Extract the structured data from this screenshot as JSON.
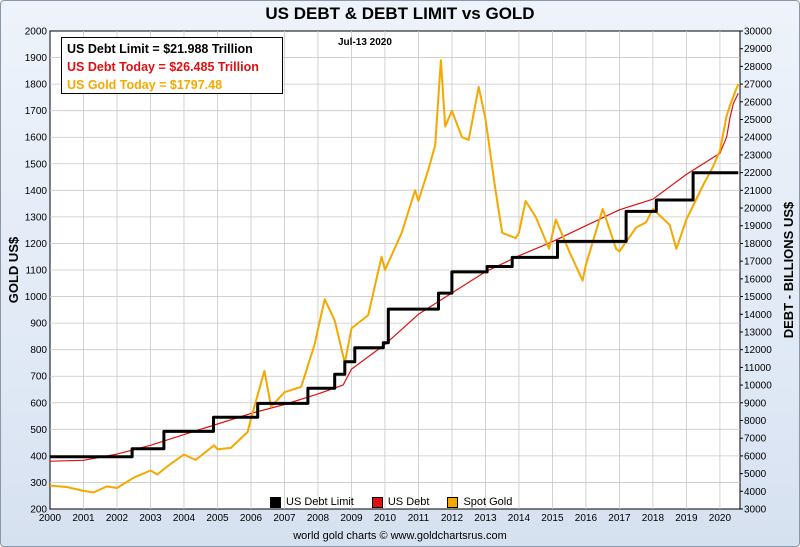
{
  "title": "US DEBT & DEBT LIMIT vs GOLD",
  "date_label": "Jul-13  2020",
  "infobox": {
    "debt_limit": "US Debt Limit      = $21.988 Trillion",
    "debt_today": "US Debt Today = $26.485 Trillion",
    "gold_today": "US Gold Today = $1797.48"
  },
  "footer": "world gold charts © www.goldchartsrus.com",
  "colors": {
    "debt_limit": "#000000",
    "debt": "#e01010",
    "gold": "#f5a800",
    "background": "#ffffff",
    "grid": "#c8c8c8"
  },
  "chart_data": {
    "type": "line",
    "title": "US DEBT & DEBT LIMIT vs GOLD",
    "xlabel": "",
    "ylabel_left": "GOLD US$",
    "ylabel_right": "DEBT - BILLIONS US$",
    "x_ticks": [
      "2000",
      "2001",
      "2002",
      "2003",
      "2004",
      "2005",
      "2006",
      "2007",
      "2008",
      "2009",
      "2010",
      "2011",
      "2012",
      "2013",
      "2014",
      "2015",
      "2016",
      "2017",
      "2018",
      "2019",
      "2020"
    ],
    "y_left_ticks": [
      200,
      300,
      400,
      500,
      600,
      700,
      800,
      900,
      1000,
      1100,
      1200,
      1300,
      1400,
      1500,
      1600,
      1700,
      1800,
      1900,
      2000
    ],
    "y_right_ticks": [
      3000,
      4000,
      5000,
      6000,
      7000,
      8000,
      9000,
      10000,
      11000,
      12000,
      13000,
      14000,
      15000,
      16000,
      17000,
      18000,
      19000,
      20000,
      21000,
      22000,
      23000,
      24000,
      25000,
      26000,
      27000,
      28000,
      29000,
      30000
    ],
    "xlim": [
      2000,
      2020.6
    ],
    "ylim_left": [
      200,
      2000
    ],
    "ylim_right": [
      3000,
      30000
    ],
    "grid": true,
    "legend_position": "bottom",
    "series": [
      {
        "name": "US Debt Limit",
        "axis": "right",
        "step": true,
        "points": [
          [
            2000,
            5950
          ],
          [
            2002.45,
            6400
          ],
          [
            2003.4,
            7384
          ],
          [
            2004.88,
            8184
          ],
          [
            2006.2,
            8965
          ],
          [
            2007.7,
            9815
          ],
          [
            2008.5,
            10615
          ],
          [
            2008.8,
            11315
          ],
          [
            2009.1,
            12104
          ],
          [
            2009.95,
            12394
          ],
          [
            2010.1,
            14294
          ],
          [
            2011.6,
            15194
          ],
          [
            2012.0,
            16394
          ],
          [
            2013.05,
            16699
          ],
          [
            2013.8,
            17212
          ],
          [
            2015.15,
            18113
          ],
          [
            2017.2,
            19808
          ],
          [
            2018.1,
            20456
          ],
          [
            2019.2,
            21988
          ],
          [
            2020.55,
            21988
          ]
        ]
      },
      {
        "name": "US Debt",
        "axis": "right",
        "points": [
          [
            2000,
            5700
          ],
          [
            2001,
            5750
          ],
          [
            2002,
            6100
          ],
          [
            2003,
            6600
          ],
          [
            2004,
            7200
          ],
          [
            2005,
            7800
          ],
          [
            2006,
            8400
          ],
          [
            2007,
            8900
          ],
          [
            2008,
            9500
          ],
          [
            2008.75,
            10000
          ],
          [
            2009,
            10900
          ],
          [
            2010,
            12300
          ],
          [
            2011,
            14000
          ],
          [
            2012,
            15200
          ],
          [
            2013,
            16400
          ],
          [
            2014,
            17300
          ],
          [
            2015,
            18100
          ],
          [
            2016,
            19000
          ],
          [
            2017,
            19900
          ],
          [
            2018,
            20500
          ],
          [
            2019,
            21900
          ],
          [
            2020,
            23100
          ],
          [
            2020.2,
            24000
          ],
          [
            2020.3,
            25100
          ],
          [
            2020.4,
            25900
          ],
          [
            2020.55,
            26485
          ]
        ]
      },
      {
        "name": "Spot Gold",
        "axis": "left",
        "points": [
          [
            2000,
            288
          ],
          [
            2000.5,
            283
          ],
          [
            2001,
            268
          ],
          [
            2001.3,
            262
          ],
          [
            2001.7,
            285
          ],
          [
            2002,
            279
          ],
          [
            2002.5,
            318
          ],
          [
            2003,
            345
          ],
          [
            2003.2,
            330
          ],
          [
            2003.6,
            370
          ],
          [
            2004,
            405
          ],
          [
            2004.35,
            385
          ],
          [
            2004.9,
            440
          ],
          [
            2005,
            425
          ],
          [
            2005.4,
            430
          ],
          [
            2005.9,
            490
          ],
          [
            2006,
            540
          ],
          [
            2006.4,
            720
          ],
          [
            2006.6,
            585
          ],
          [
            2007,
            640
          ],
          [
            2007.5,
            660
          ],
          [
            2007.9,
            820
          ],
          [
            2008.2,
            990
          ],
          [
            2008.5,
            910
          ],
          [
            2008.8,
            750
          ],
          [
            2009,
            880
          ],
          [
            2009.5,
            930
          ],
          [
            2009.9,
            1150
          ],
          [
            2010,
            1100
          ],
          [
            2010.5,
            1240
          ],
          [
            2010.9,
            1400
          ],
          [
            2011,
            1360
          ],
          [
            2011.3,
            1480
          ],
          [
            2011.5,
            1570
          ],
          [
            2011.67,
            1890
          ],
          [
            2011.8,
            1640
          ],
          [
            2012,
            1700
          ],
          [
            2012.3,
            1600
          ],
          [
            2012.5,
            1590
          ],
          [
            2012.8,
            1790
          ],
          [
            2013,
            1670
          ],
          [
            2013.3,
            1400
          ],
          [
            2013.5,
            1240
          ],
          [
            2013.9,
            1220
          ],
          [
            2014,
            1240
          ],
          [
            2014.2,
            1360
          ],
          [
            2014.5,
            1300
          ],
          [
            2014.9,
            1180
          ],
          [
            2015.1,
            1290
          ],
          [
            2015.5,
            1170
          ],
          [
            2015.9,
            1060
          ],
          [
            2016,
            1120
          ],
          [
            2016.5,
            1330
          ],
          [
            2016.9,
            1180
          ],
          [
            2017,
            1170
          ],
          [
            2017.5,
            1260
          ],
          [
            2017.8,
            1280
          ],
          [
            2018,
            1330
          ],
          [
            2018.5,
            1270
          ],
          [
            2018.7,
            1180
          ],
          [
            2019,
            1290
          ],
          [
            2019.5,
            1420
          ],
          [
            2019.8,
            1490
          ],
          [
            2020,
            1550
          ],
          [
            2020.2,
            1680
          ],
          [
            2020.3,
            1720
          ],
          [
            2020.45,
            1770
          ],
          [
            2020.55,
            1800
          ]
        ]
      }
    ]
  },
  "legend": [
    {
      "label": "US Debt Limit",
      "color": "#000000"
    },
    {
      "label": "US Debt",
      "color": "#e01010"
    },
    {
      "label": "Spot Gold",
      "color": "#f5a800"
    }
  ]
}
